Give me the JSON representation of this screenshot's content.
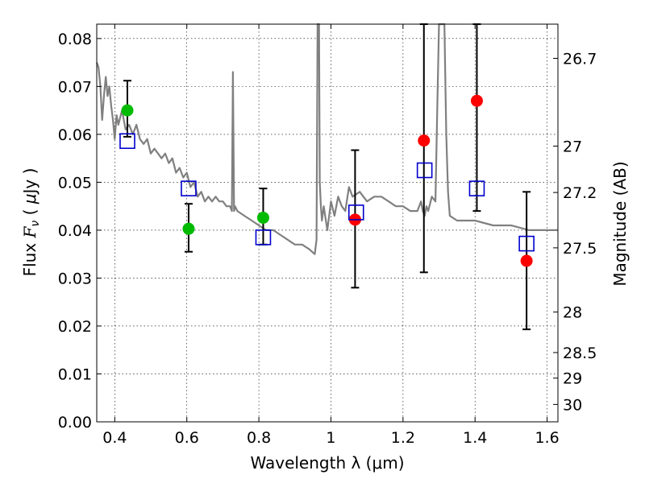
{
  "chart_data": {
    "type": "scatter",
    "xlabel": "Wavelength  λ (μm)",
    "ylabel": "Flux  F_ν  ( μJy )",
    "ylabel_parts": {
      "a": "Flux  ",
      "b": "F",
      "c": "ν",
      "d": "  ( ",
      "e": "μ",
      "f": "Jy )"
    },
    "y2label": "Magnitude (AB)",
    "xlim": [
      0.35,
      1.63
    ],
    "ylim": [
      0.0,
      0.083
    ],
    "grid": true,
    "x_ticks": [
      {
        "v": 0.4,
        "label": "0.4"
      },
      {
        "v": 0.6,
        "label": "0.6"
      },
      {
        "v": 0.8,
        "label": "0.8"
      },
      {
        "v": 1.0,
        "label": "1"
      },
      {
        "v": 1.2,
        "label": "1.2"
      },
      {
        "v": 1.4,
        "label": "1.4"
      },
      {
        "v": 1.6,
        "label": "1.6"
      }
    ],
    "y_ticks": [
      {
        "v": 0.0,
        "label": "0.00"
      },
      {
        "v": 0.01,
        "label": "0.01"
      },
      {
        "v": 0.02,
        "label": "0.02"
      },
      {
        "v": 0.03,
        "label": "0.03"
      },
      {
        "v": 0.04,
        "label": "0.04"
      },
      {
        "v": 0.05,
        "label": "0.05"
      },
      {
        "v": 0.06,
        "label": "0.06"
      },
      {
        "v": 0.07,
        "label": "0.07"
      },
      {
        "v": 0.08,
        "label": "0.08"
      }
    ],
    "y2_ticks": [
      {
        "mag": 26.7,
        "label": "26.7"
      },
      {
        "mag": 27.0,
        "label": "27"
      },
      {
        "mag": 27.2,
        "label": "27.2"
      },
      {
        "mag": 27.5,
        "label": "27.5"
      },
      {
        "mag": 28.0,
        "label": "28"
      },
      {
        "mag": 28.5,
        "label": "28.5"
      },
      {
        "mag": 29.0,
        "label": "29"
      },
      {
        "mag": 30.0,
        "label": "30"
      }
    ],
    "model_spectrum": {
      "color": "#808080",
      "x": [
        0.35,
        0.355,
        0.36,
        0.365,
        0.37,
        0.375,
        0.38,
        0.385,
        0.39,
        0.395,
        0.4,
        0.405,
        0.41,
        0.42,
        0.43,
        0.44,
        0.45,
        0.46,
        0.47,
        0.48,
        0.49,
        0.5,
        0.51,
        0.52,
        0.53,
        0.54,
        0.55,
        0.56,
        0.57,
        0.58,
        0.59,
        0.6,
        0.61,
        0.62,
        0.63,
        0.64,
        0.65,
        0.66,
        0.67,
        0.68,
        0.69,
        0.7,
        0.71,
        0.72,
        0.725,
        0.728,
        0.731,
        0.734,
        0.74,
        0.76,
        0.78,
        0.8,
        0.82,
        0.84,
        0.86,
        0.88,
        0.9,
        0.92,
        0.94,
        0.955,
        0.96,
        0.963,
        0.965,
        0.967,
        0.969,
        0.972,
        0.975,
        0.98,
        0.99,
        1.0,
        1.01,
        1.02,
        1.03,
        1.04,
        1.05,
        1.06,
        1.08,
        1.1,
        1.12,
        1.14,
        1.16,
        1.18,
        1.2,
        1.22,
        1.24,
        1.25,
        1.255,
        1.26,
        1.265,
        1.27,
        1.28,
        1.29,
        1.295,
        1.3,
        1.305,
        1.31,
        1.315,
        1.32,
        1.325,
        1.33,
        1.35,
        1.4,
        1.45,
        1.5,
        1.55,
        1.6,
        1.63
      ],
      "y": [
        0.075,
        0.074,
        0.07,
        0.063,
        0.068,
        0.072,
        0.068,
        0.07,
        0.066,
        0.063,
        0.059,
        0.064,
        0.062,
        0.065,
        0.061,
        0.062,
        0.06,
        0.062,
        0.059,
        0.058,
        0.059,
        0.056,
        0.057,
        0.056,
        0.055,
        0.056,
        0.054,
        0.055,
        0.052,
        0.053,
        0.051,
        0.052,
        0.049,
        0.05,
        0.047,
        0.048,
        0.046,
        0.047,
        0.046,
        0.047,
        0.046,
        0.046,
        0.045,
        0.045,
        0.044,
        0.073,
        0.044,
        0.045,
        0.044,
        0.043,
        0.042,
        0.041,
        0.04,
        0.04,
        0.039,
        0.038,
        0.037,
        0.037,
        0.036,
        0.035,
        0.038,
        0.083,
        0.083,
        0.083,
        0.05,
        0.045,
        0.042,
        0.045,
        0.04,
        0.046,
        0.043,
        0.047,
        0.045,
        0.044,
        0.049,
        0.047,
        0.048,
        0.046,
        0.047,
        0.047,
        0.046,
        0.045,
        0.045,
        0.044,
        0.044,
        0.046,
        0.044,
        0.043,
        0.045,
        0.044,
        0.047,
        0.046,
        0.065,
        0.083,
        0.083,
        0.083,
        0.083,
        0.06,
        0.048,
        0.043,
        0.042,
        0.042,
        0.041,
        0.041,
        0.04,
        0.04,
        0.04
      ]
    },
    "series": [
      {
        "marker": "filled-circle",
        "color": "#00bb00",
        "points": [
          {
            "x": 0.435,
            "y": 0.065,
            "yerr_low": 0.0595,
            "yerr_high": 0.0712
          },
          {
            "x": 0.605,
            "y": 0.0403,
            "yerr_low": 0.0355,
            "yerr_high": 0.0455
          },
          {
            "x": 0.812,
            "y": 0.0426,
            "yerr_low": 0.037,
            "yerr_high": 0.0487
          }
        ]
      },
      {
        "marker": "filled-circle",
        "color": "#ff0000",
        "points": [
          {
            "x": 1.067,
            "y": 0.0422,
            "yerr_low": 0.028,
            "yerr_high": 0.0567
          },
          {
            "x": 1.258,
            "y": 0.0587,
            "yerr_low": 0.0312,
            "yerr_high": 0.083
          },
          {
            "x": 1.405,
            "y": 0.067,
            "yerr_low": 0.044,
            "yerr_high": 0.083
          },
          {
            "x": 1.543,
            "y": 0.0336,
            "yerr_low": 0.0193,
            "yerr_high": 0.048
          }
        ]
      },
      {
        "marker": "open-square",
        "color": "#0000cc",
        "points": [
          {
            "x": 0.435,
            "y": 0.0586
          },
          {
            "x": 0.605,
            "y": 0.0487
          },
          {
            "x": 0.812,
            "y": 0.0385
          },
          {
            "x": 1.07,
            "y": 0.0437
          },
          {
            "x": 1.26,
            "y": 0.0525
          },
          {
            "x": 1.405,
            "y": 0.0487
          },
          {
            "x": 1.543,
            "y": 0.0372
          }
        ]
      }
    ]
  }
}
